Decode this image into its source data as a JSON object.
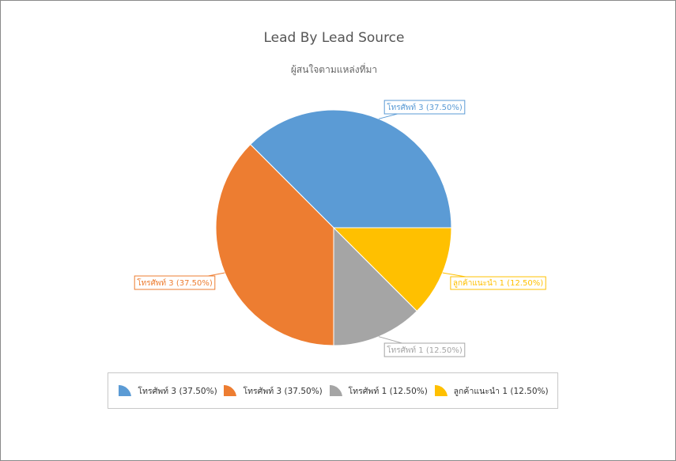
{
  "chart_data": {
    "type": "pie",
    "title": "Lead By Lead Source",
    "subtitle": "ผู้สนใจตามแหล่งที่มา",
    "slices": [
      {
        "name": "โทรศัพท์",
        "value": 3,
        "percent": "37.50%",
        "label": "โทรศัพท์ 3 (37.50%)",
        "color": "#5b9bd5"
      },
      {
        "name": "โทรศัพท์",
        "value": 3,
        "percent": "37.50%",
        "label": "โทรศัพท์ 3 (37.50%)",
        "color": "#ed7d31"
      },
      {
        "name": "โทรศัพท์",
        "value": 1,
        "percent": "12.50%",
        "label": "โทรศัพท์ 1 (12.50%)",
        "color": "#a5a5a5"
      },
      {
        "name": "ลูกค้าแนะนำ",
        "value": 1,
        "percent": "12.50%",
        "label": "ลูกค้าแนะนำ 1 (12.50%)",
        "color": "#ffc000"
      }
    ],
    "legend_position": "bottom"
  }
}
